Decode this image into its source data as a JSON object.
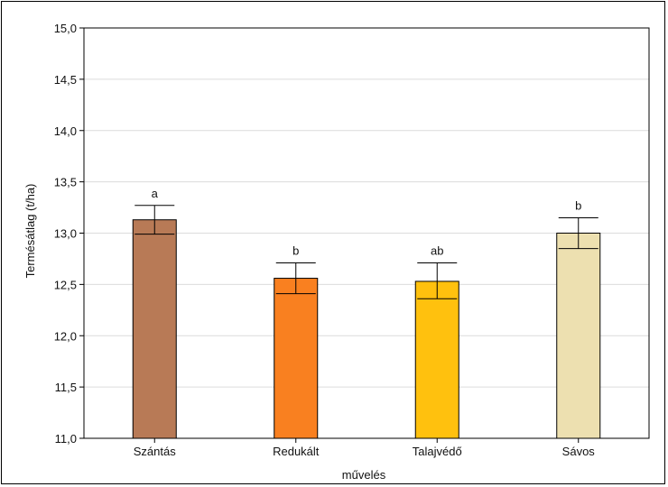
{
  "chart_data": {
    "type": "bar",
    "title": "",
    "xlabel": "művelés",
    "ylabel": "Termésátlag (t/ha)",
    "ylim": [
      11.0,
      15.0
    ],
    "yticks": [
      "11,0",
      "11,5",
      "12,0",
      "12,5",
      "13,0",
      "13,5",
      "14,0",
      "14,5",
      "15,0"
    ],
    "categories": [
      "Szántás",
      "Redukált",
      "Talajvédő",
      "Sávos"
    ],
    "values": [
      13.13,
      12.56,
      12.53,
      13.0
    ],
    "error_upper": [
      13.27,
      12.71,
      12.71,
      13.15
    ],
    "error_lower": [
      12.99,
      12.41,
      12.36,
      12.85
    ],
    "significance_letters": [
      "a",
      "b",
      "ab",
      "b"
    ],
    "grid": true,
    "legend": "none"
  },
  "colors": {
    "bars": [
      "#b87a56",
      "#f98020",
      "#ffc10e",
      "#ede0b0"
    ],
    "grid": "#dcdcdc",
    "axis": "#000000"
  }
}
